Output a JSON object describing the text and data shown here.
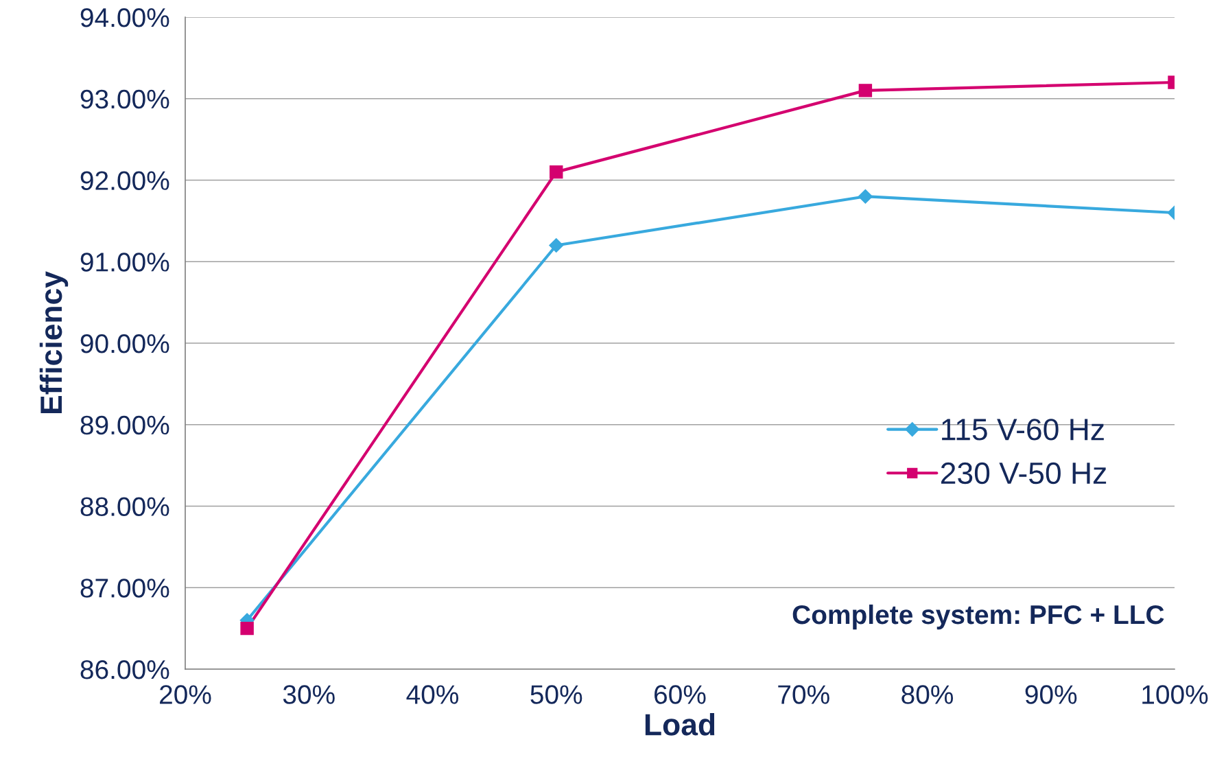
{
  "chart_data": {
    "type": "line",
    "xlabel": "Load",
    "ylabel": "Efficiency",
    "x": [
      25,
      50,
      75,
      100
    ],
    "series": [
      {
        "name": "115 V-60 Hz",
        "color": "#38a9de",
        "marker": "diamond",
        "values": [
          86.6,
          91.2,
          91.8,
          91.6
        ]
      },
      {
        "name": "230 V-50 Hz",
        "color": "#d4006f",
        "marker": "square",
        "values": [
          86.5,
          92.1,
          93.1,
          93.2
        ]
      }
    ],
    "xlim": [
      20,
      100
    ],
    "xticks": [
      {
        "value": 20,
        "label": "20%"
      },
      {
        "value": 30,
        "label": "30%"
      },
      {
        "value": 40,
        "label": "40%"
      },
      {
        "value": 50,
        "label": "50%"
      },
      {
        "value": 60,
        "label": "60%"
      },
      {
        "value": 70,
        "label": "70%"
      },
      {
        "value": 80,
        "label": "80%"
      },
      {
        "value": 90,
        "label": "90%"
      },
      {
        "value": 100,
        "label": "100%"
      }
    ],
    "ylim": [
      86,
      94
    ],
    "yticks": [
      {
        "value": 86,
        "label": "86.00%"
      },
      {
        "value": 87,
        "label": "87.00%"
      },
      {
        "value": 88,
        "label": "88.00%"
      },
      {
        "value": 89,
        "label": "89.00%"
      },
      {
        "value": 90,
        "label": "90.00%"
      },
      {
        "value": 91,
        "label": "91.00%"
      },
      {
        "value": 92,
        "label": "92.00%"
      },
      {
        "value": 93,
        "label": "93.00%"
      },
      {
        "value": 94,
        "label": "94.00%"
      }
    ],
    "grid": "y",
    "legend": "right",
    "line_style": "solid",
    "annotations": [
      "Complete system: PFC + LLC"
    ]
  }
}
